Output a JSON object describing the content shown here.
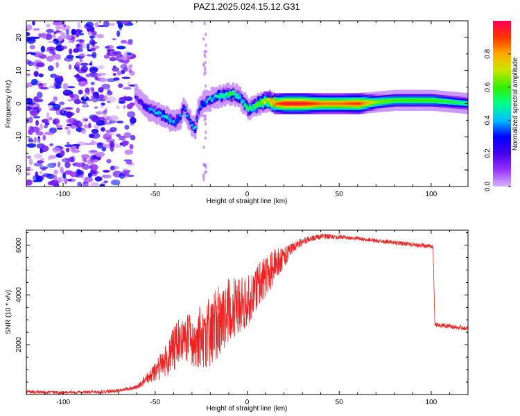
{
  "title": "PAZ1.2025.024.15.12.G31",
  "chart_data": [
    {
      "type": "heatmap",
      "xlabel": "Height of straight line (km)",
      "ylabel": "Frequency (Hz)",
      "xlim": [
        -120,
        120
      ],
      "ylim": [
        -25,
        25
      ],
      "xticks": [
        -100,
        -50,
        0,
        50,
        100
      ],
      "yticks": [
        -20,
        -10,
        0,
        10,
        20
      ],
      "colorbar": {
        "label": "Normalized spectral amplitude",
        "range": [
          0,
          1
        ],
        "ticks": [
          0.0,
          0.2,
          0.4,
          0.6,
          0.8
        ],
        "colors": [
          "#d9b3ff",
          "#9933ff",
          "#4400ee",
          "#0000ff",
          "#00bfff",
          "#00ff88",
          "#33ee00",
          "#c8e600",
          "#ffaa00",
          "#ff3300",
          "#ff0055"
        ]
      },
      "ridge": [
        {
          "x": -62,
          "y": 3,
          "a": 0.15
        },
        {
          "x": -58,
          "y": 0,
          "a": 0.2
        },
        {
          "x": -55,
          "y": -1.5,
          "a": 0.35
        },
        {
          "x": -52,
          "y": -2,
          "a": 0.4
        },
        {
          "x": -48,
          "y": -3,
          "a": 0.4
        },
        {
          "x": -45,
          "y": -4,
          "a": 0.45
        },
        {
          "x": -42,
          "y": -5,
          "a": 0.4
        },
        {
          "x": -40,
          "y": -5.5,
          "a": 0.4
        },
        {
          "x": -37,
          "y": -4,
          "a": 0.35
        },
        {
          "x": -35,
          "y": -1,
          "a": 0.3
        },
        {
          "x": -33,
          "y": -4,
          "a": 0.35
        },
        {
          "x": -31,
          "y": -6,
          "a": 0.35
        },
        {
          "x": -29,
          "y": -8,
          "a": 0.4
        },
        {
          "x": -27,
          "y": -2,
          "a": 0.3
        },
        {
          "x": -25,
          "y": 0,
          "a": 0.35
        },
        {
          "x": -22,
          "y": 1,
          "a": 0.4
        },
        {
          "x": -18,
          "y": 2,
          "a": 0.45
        },
        {
          "x": -14,
          "y": 2.5,
          "a": 0.5
        },
        {
          "x": -10,
          "y": 3,
          "a": 0.55
        },
        {
          "x": -6,
          "y": 2.5,
          "a": 0.5
        },
        {
          "x": -3,
          "y": 0.5,
          "a": 0.45
        },
        {
          "x": 0,
          "y": -1.5,
          "a": 0.55
        },
        {
          "x": 3,
          "y": -1,
          "a": 0.55
        },
        {
          "x": 6,
          "y": 0,
          "a": 0.65
        },
        {
          "x": 10,
          "y": 1,
          "a": 0.7
        },
        {
          "x": 15,
          "y": 0,
          "a": 0.85
        },
        {
          "x": 20,
          "y": 0,
          "a": 0.95
        },
        {
          "x": 30,
          "y": 0,
          "a": 0.95
        },
        {
          "x": 40,
          "y": 0,
          "a": 0.85
        },
        {
          "x": 50,
          "y": 0,
          "a": 0.85
        },
        {
          "x": 60,
          "y": 0,
          "a": 0.9
        },
        {
          "x": 70,
          "y": 0.5,
          "a": 0.65
        },
        {
          "x": 80,
          "y": 1,
          "a": 0.6
        },
        {
          "x": 90,
          "y": 1,
          "a": 0.6
        },
        {
          "x": 100,
          "y": 1,
          "a": 0.6
        },
        {
          "x": 110,
          "y": 0.5,
          "a": 0.55
        },
        {
          "x": 120,
          "y": 0,
          "a": 0.5
        }
      ]
    },
    {
      "type": "line",
      "xlabel": "Height of straight line (km)",
      "ylabel": "SNR (10 * v/v)",
      "xlim": [
        -120,
        120
      ],
      "ylim": [
        0,
        6600
      ],
      "xticks": [
        -100,
        -50,
        0,
        50,
        100
      ],
      "yticks": [
        2000,
        4000,
        6000
      ],
      "color": "#ee2222",
      "envelope": [
        {
          "x": -120,
          "y": 100
        },
        {
          "x": -100,
          "y": 80
        },
        {
          "x": -80,
          "y": 100
        },
        {
          "x": -70,
          "y": 150
        },
        {
          "x": -60,
          "y": 300
        },
        {
          "x": -50,
          "y": 900
        },
        {
          "x": -45,
          "y": 1300
        },
        {
          "x": -40,
          "y": 1800
        },
        {
          "x": -35,
          "y": 2300
        },
        {
          "x": -30,
          "y": 2200
        },
        {
          "x": -25,
          "y": 2300
        },
        {
          "x": -20,
          "y": 2500
        },
        {
          "x": -15,
          "y": 3000
        },
        {
          "x": -10,
          "y": 3400
        },
        {
          "x": -5,
          "y": 3600
        },
        {
          "x": 0,
          "y": 3700
        },
        {
          "x": 5,
          "y": 4300
        },
        {
          "x": 10,
          "y": 4700
        },
        {
          "x": 15,
          "y": 5200
        },
        {
          "x": 20,
          "y": 5500
        },
        {
          "x": 25,
          "y": 5900
        },
        {
          "x": 30,
          "y": 6150
        },
        {
          "x": 40,
          "y": 6350
        },
        {
          "x": 50,
          "y": 6330
        },
        {
          "x": 60,
          "y": 6270
        },
        {
          "x": 70,
          "y": 6180
        },
        {
          "x": 80,
          "y": 6100
        },
        {
          "x": 90,
          "y": 6020
        },
        {
          "x": 100,
          "y": 5950
        },
        {
          "x": 101,
          "y": 5900
        },
        {
          "x": 102,
          "y": 2800
        },
        {
          "x": 110,
          "y": 2750
        },
        {
          "x": 120,
          "y": 2650
        }
      ],
      "noise": [
        {
          "x": -120,
          "amp": 60
        },
        {
          "x": -60,
          "amp": 80
        },
        {
          "x": -50,
          "amp": 400
        },
        {
          "x": -40,
          "amp": 900
        },
        {
          "x": -30,
          "amp": 1100
        },
        {
          "x": -20,
          "amp": 1500
        },
        {
          "x": -10,
          "amp": 1300
        },
        {
          "x": 0,
          "amp": 1000
        },
        {
          "x": 10,
          "amp": 900
        },
        {
          "x": 18,
          "amp": 500
        },
        {
          "x": 25,
          "amp": 200
        },
        {
          "x": 35,
          "amp": 120
        },
        {
          "x": 60,
          "amp": 80
        },
        {
          "x": 100,
          "amp": 100
        },
        {
          "x": 120,
          "amp": 90
        }
      ]
    }
  ]
}
